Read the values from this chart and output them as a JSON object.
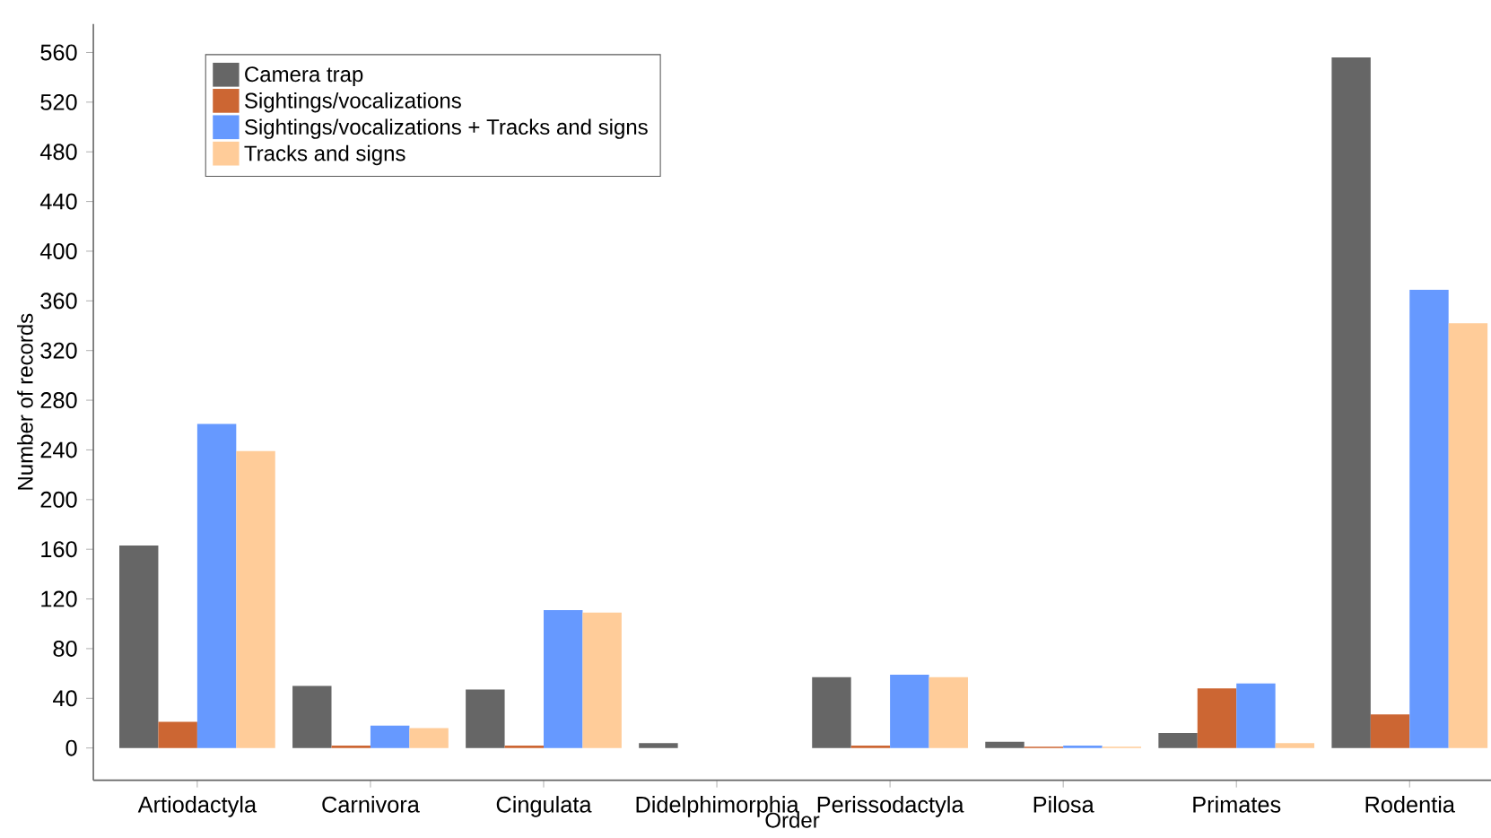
{
  "chart_data": {
    "type": "bar",
    "xlabel": "Order",
    "ylabel": "Number of records",
    "categories": [
      "Artiodactyla",
      "Carnivora",
      "Cingulata",
      "Didelphimorphia",
      "Perissodactyla",
      "Pilosa",
      "Primates",
      "Rodentia"
    ],
    "series": [
      {
        "name": "Camera trap",
        "color": "#666666",
        "values": [
          163,
          50,
          47,
          4,
          57,
          5,
          12,
          556
        ]
      },
      {
        "name": "Sightings/vocalizations",
        "color": "#cc6633",
        "values": [
          21,
          2,
          2,
          null,
          2,
          1,
          48,
          27
        ]
      },
      {
        "name": "Sightings/vocalizations + Tracks and signs",
        "color": "#6699ff",
        "values": [
          261,
          18,
          111,
          null,
          59,
          2,
          52,
          369
        ]
      },
      {
        "name": "Tracks and signs",
        "color": "#ffcc99",
        "values": [
          239,
          16,
          109,
          null,
          57,
          1,
          4,
          342
        ]
      }
    ],
    "ylim": [
      -26,
      583
    ],
    "yticks": [
      0,
      40,
      80,
      120,
      160,
      200,
      240,
      280,
      320,
      360,
      400,
      440,
      480,
      520,
      560
    ],
    "legend": "top left",
    "grid": false
  }
}
